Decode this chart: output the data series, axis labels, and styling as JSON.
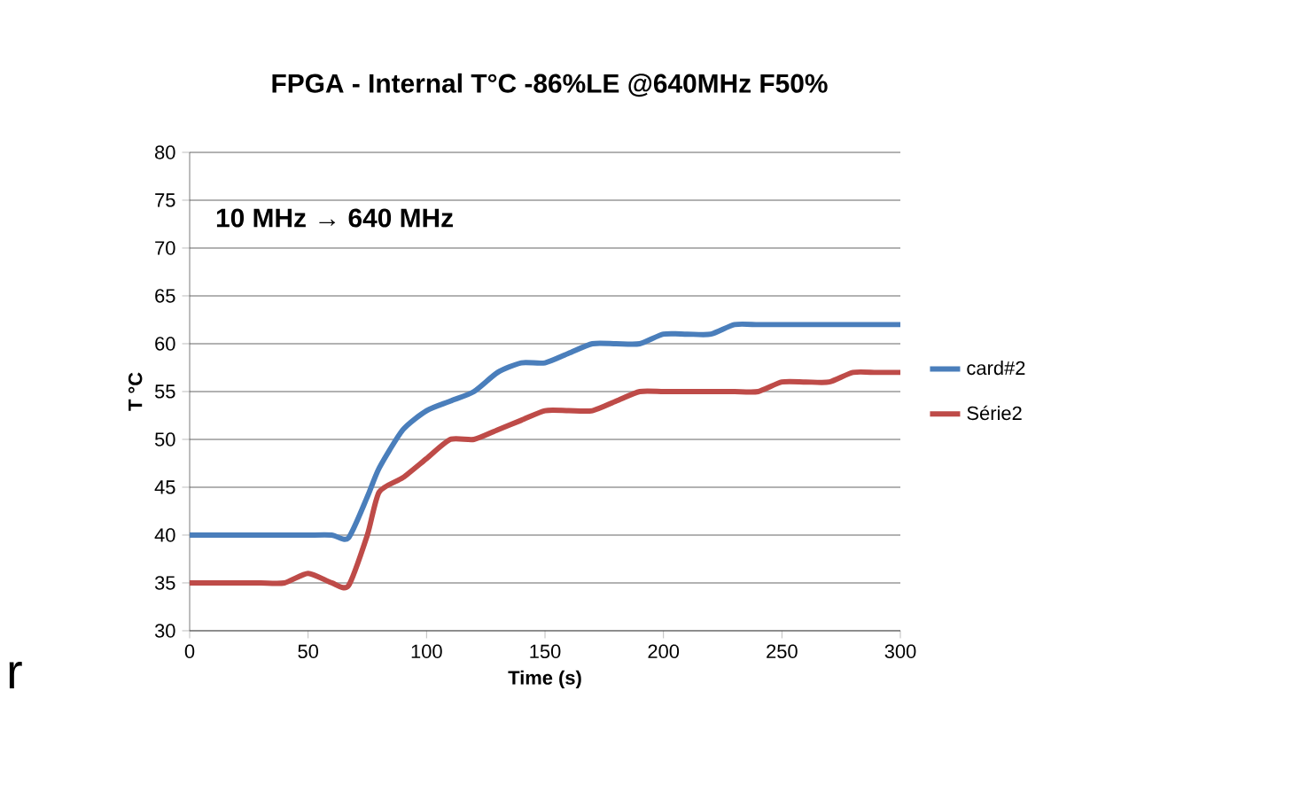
{
  "chart_data": {
    "type": "line",
    "title": "FPGA - Internal T°C -86%LE @640MHz F50%",
    "xlabel": "Time (s)",
    "ylabel": "T °C",
    "annotations": [
      "10 MHz → 640 MHz",
      "r"
    ],
    "series": [
      {
        "name": "card#2",
        "color": "#4a7ebb",
        "x": [
          0,
          10,
          20,
          30,
          40,
          50,
          60,
          67,
          75,
          80,
          90,
          100,
          110,
          120,
          130,
          140,
          150,
          160,
          170,
          180,
          190,
          200,
          210,
          220,
          230,
          240,
          250,
          260,
          270,
          280,
          290,
          300
        ],
        "values": [
          40,
          40,
          40,
          40,
          40,
          40,
          40,
          39.7,
          44,
          47,
          51,
          53,
          54,
          55,
          57,
          58,
          58,
          59,
          60,
          60,
          60,
          61,
          61,
          61,
          62,
          62,
          62,
          62,
          62,
          62,
          62,
          62
        ]
      },
      {
        "name": "Série2",
        "color": "#be4b48",
        "x": [
          0,
          10,
          20,
          30,
          40,
          50,
          60,
          67,
          75,
          80,
          90,
          100,
          110,
          120,
          130,
          140,
          150,
          160,
          170,
          180,
          190,
          200,
          210,
          220,
          230,
          240,
          250,
          260,
          270,
          280,
          290,
          300
        ],
        "values": [
          35,
          35,
          35,
          35,
          35,
          36,
          35,
          34.7,
          40,
          44.5,
          46,
          48,
          50,
          50,
          51,
          52,
          53,
          53,
          53,
          54,
          55,
          55,
          55,
          55,
          55,
          55,
          56,
          56,
          56,
          57,
          57,
          57
        ]
      }
    ],
    "xlim": [
      0,
      300
    ],
    "ylim": [
      30,
      80
    ],
    "xticks": [
      0,
      50,
      100,
      150,
      200,
      250,
      300
    ],
    "yticks": [
      30,
      35,
      40,
      45,
      50,
      55,
      60,
      65,
      70,
      75,
      80
    ],
    "grid": "y",
    "legend": "right",
    "marker": "none",
    "line_style": "solid"
  }
}
